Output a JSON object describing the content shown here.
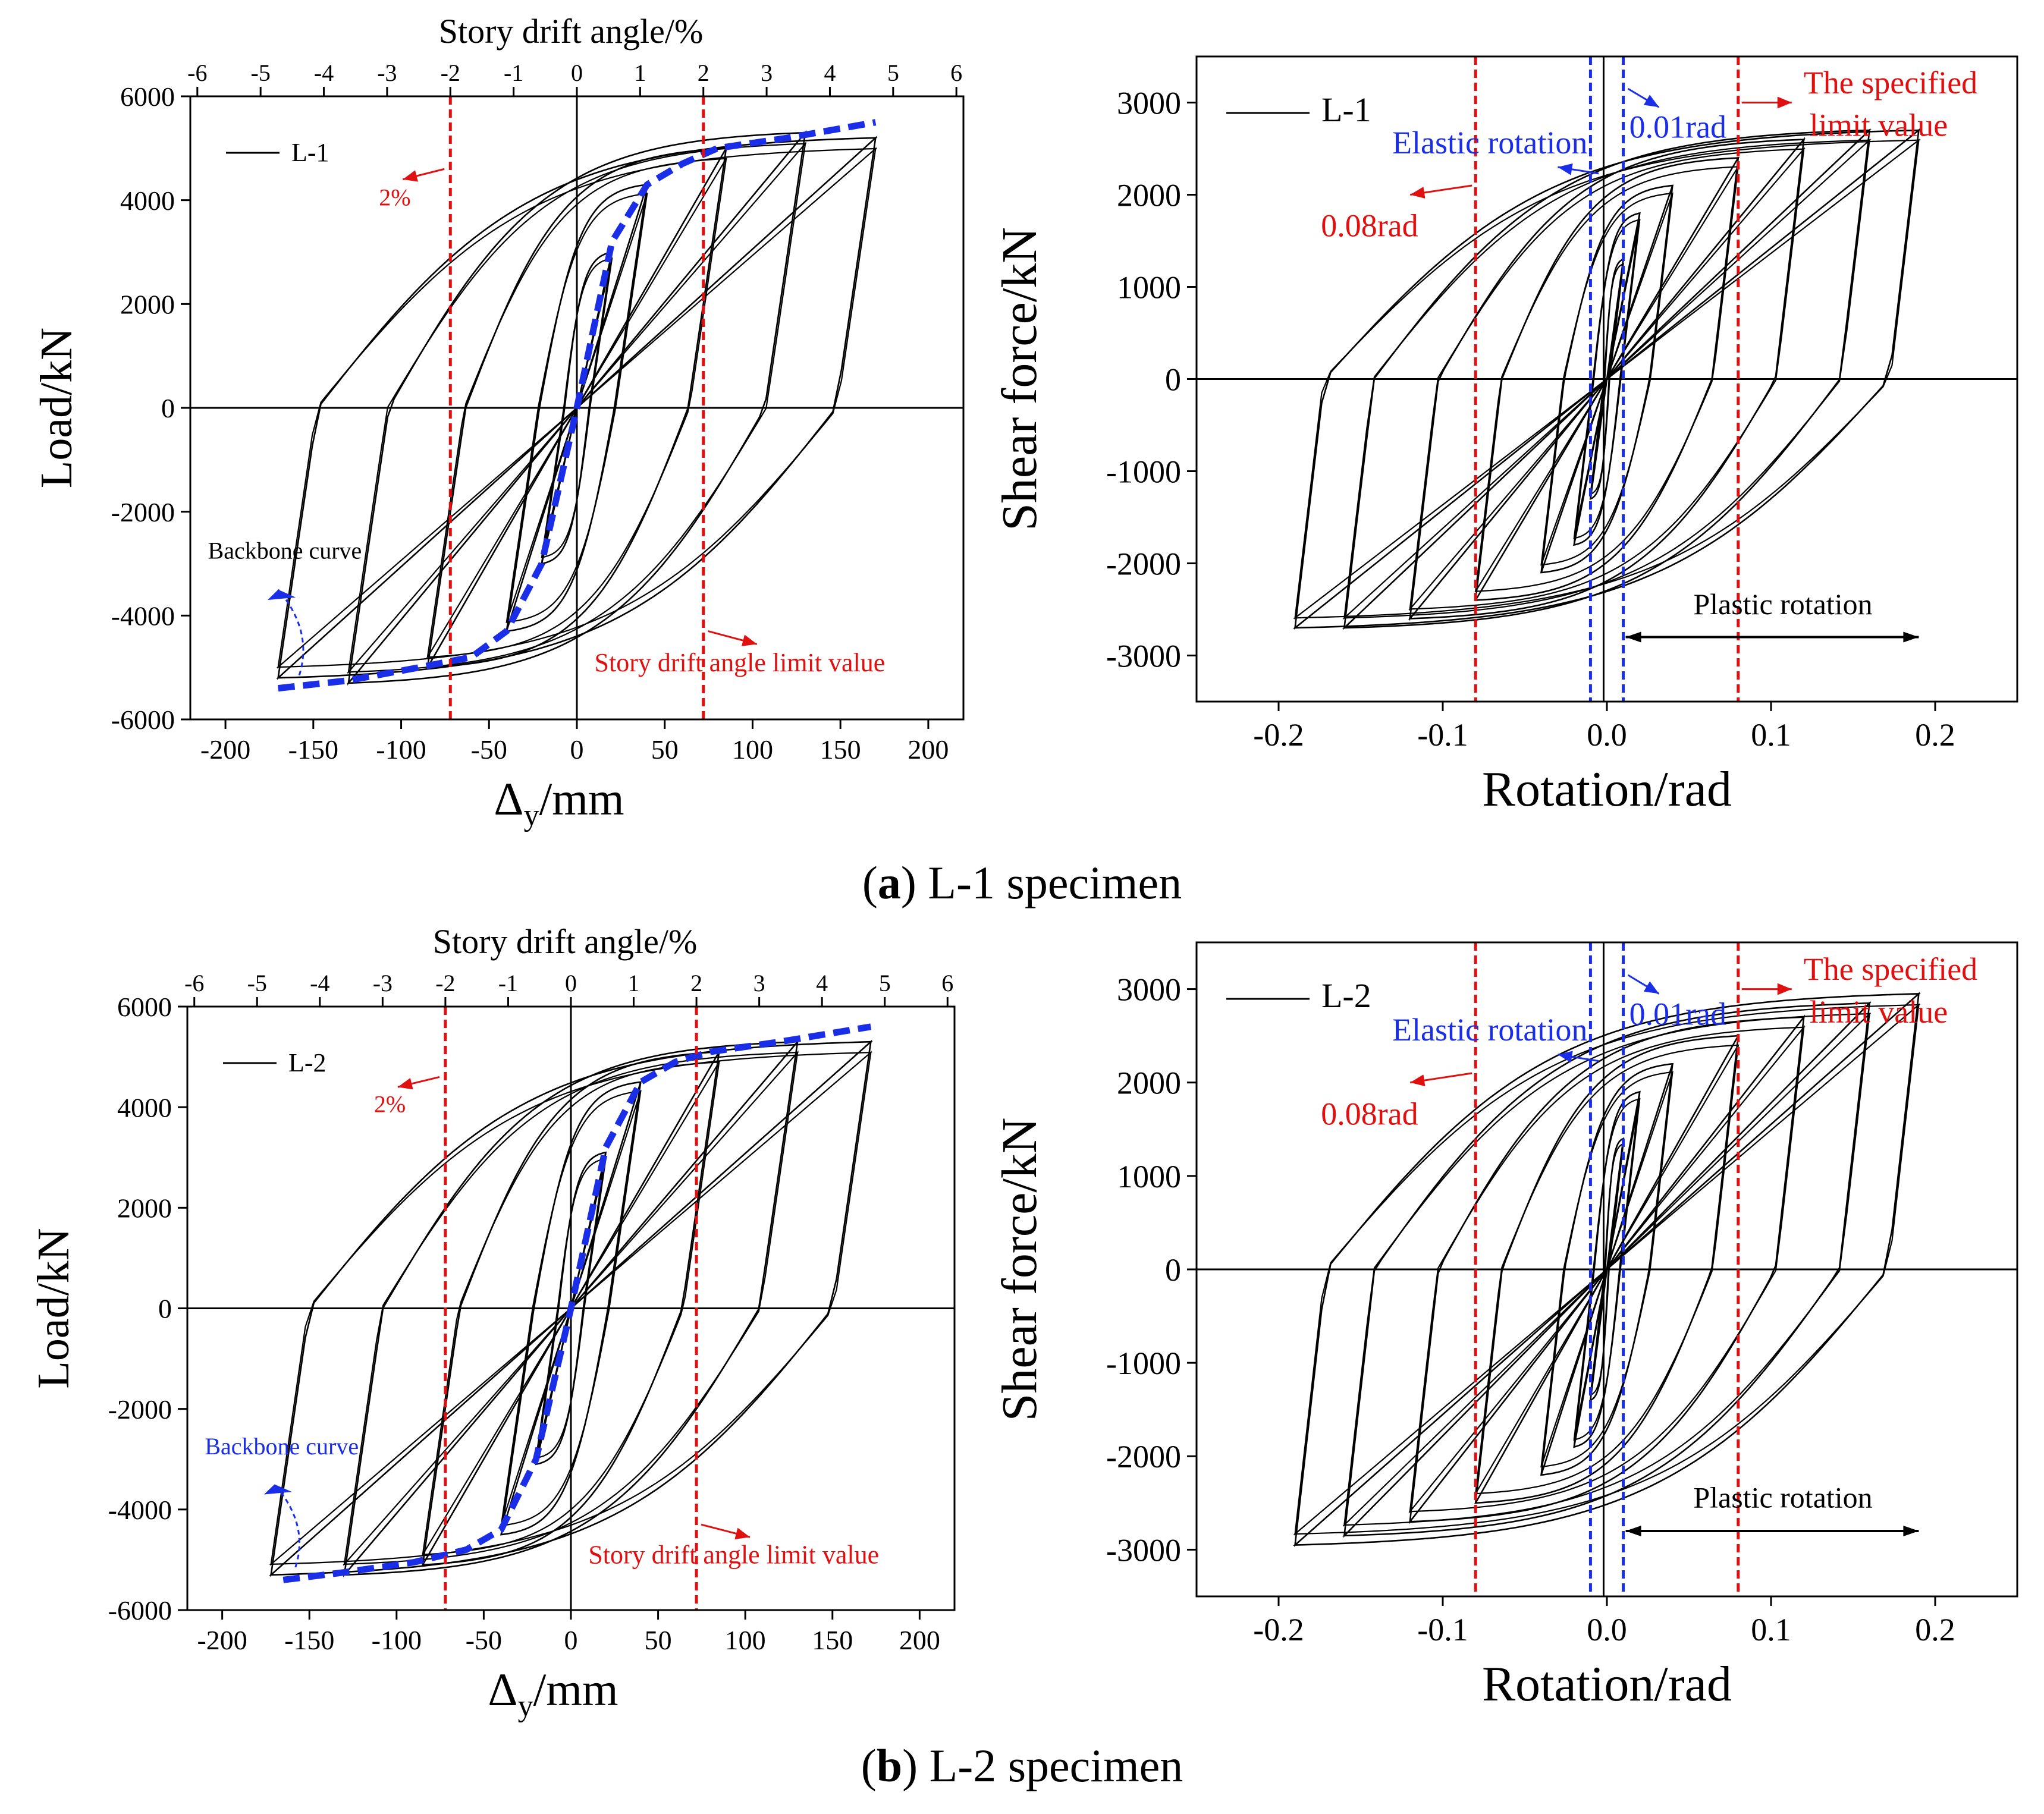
{
  "colors": {
    "curve": "#000000",
    "backbone": "#1a2ee8",
    "limit": "#e01010",
    "elastic": "#1a2ee8",
    "axis": "#000000"
  },
  "captions": [
    {
      "letter": "a",
      "text": "L-1 specimen"
    },
    {
      "letter": "b",
      "text": "L-2 specimen"
    }
  ],
  "chart_data": [
    {
      "id": "a-left",
      "type": "line",
      "title": "",
      "xlabel": "Δy/mm",
      "xlabel_main": "Δ",
      "xlabel_sub": "y",
      "xlabel_unit": "/mm",
      "ylabel": "Load/kN",
      "x2label": "Story drift angle/%",
      "xlim": [
        -220,
        220
      ],
      "ylim": [
        -6000,
        6000
      ],
      "xticks": [
        -200,
        -150,
        -100,
        -50,
        0,
        50,
        100,
        150,
        200
      ],
      "yticks": [
        -6000,
        -4000,
        -2000,
        0,
        2000,
        4000,
        6000
      ],
      "x2ticks": [
        -6,
        -5,
        -4,
        -3,
        -2,
        -1,
        0,
        1,
        2,
        3,
        4,
        5,
        6
      ],
      "x2_per_unit_mm": 36,
      "legend": {
        "label": "L-1",
        "position": "top-left"
      },
      "hysteresis": {
        "amps": [
          20,
          40,
          85,
          130,
          170
        ],
        "forces": [
          3000,
          4300,
          5000,
          5300,
          5200
        ],
        "k0": 230
      },
      "backbone": {
        "x": [
          -170,
          -130,
          -90,
          -60,
          -40,
          -20,
          0,
          20,
          40,
          60,
          80,
          120,
          170
        ],
        "y": [
          -5400,
          -5250,
          -5000,
          -4800,
          -4300,
          -3000,
          0,
          3200,
          4300,
          4700,
          5000,
          5200,
          5500
        ]
      },
      "limit_lines_x": [
        -72,
        72
      ],
      "annotations": {
        "two_pct": "2%",
        "backbone": "Backbone curve",
        "limit": "Story drift angle limit value"
      }
    },
    {
      "id": "a-right",
      "type": "line",
      "title": "",
      "xlabel": "Rotation/rad",
      "ylabel": "Shear force/kN",
      "xlim": [
        -0.25,
        0.25
      ],
      "ylim": [
        -3500,
        3500
      ],
      "xticks": [
        -0.2,
        -0.1,
        0.0,
        0.1,
        0.2
      ],
      "xtick_labels": [
        "-0.2",
        "-0.1",
        "0.0",
        "0.1",
        "0.2"
      ],
      "yticks": [
        -3000,
        -2000,
        -1000,
        0,
        1000,
        2000,
        3000
      ],
      "legend": {
        "label": "L-1",
        "position": "top-left"
      },
      "hysteresis": {
        "amps": [
          0.01,
          0.02,
          0.04,
          0.08,
          0.12,
          0.16,
          0.19
        ],
        "forces": [
          1300,
          1800,
          2100,
          2400,
          2600,
          2700,
          2700
        ],
        "k0": 150000
      },
      "limit_lines_x": [
        -0.08,
        0.08
      ],
      "elastic_lines_x": [
        -0.01,
        0.01
      ],
      "center_line_x": -0.002,
      "annotations": {
        "specified": [
          "The specified",
          "limit value"
        ],
        "elastic": "Elastic rotation",
        "rad01": "0.01rad",
        "rad08": "0.08rad",
        "plastic": "Plastic rotation"
      }
    },
    {
      "id": "b-left",
      "type": "line",
      "title": "",
      "xlabel": "Δy/mm",
      "xlabel_main": "Δ",
      "xlabel_sub": "y",
      "xlabel_unit": "/mm",
      "ylabel": "Load/kN",
      "x2label": "Story drift angle/%",
      "xlim": [
        -220,
        220
      ],
      "ylim": [
        -6000,
        6000
      ],
      "xticks": [
        -200,
        -150,
        -100,
        -50,
        0,
        50,
        100,
        150,
        200
      ],
      "yticks": [
        -6000,
        -4000,
        -2000,
        0,
        2000,
        4000,
        6000
      ],
      "x2ticks": [
        -6,
        -5,
        -4,
        -3,
        -2,
        -1,
        0,
        1,
        2,
        3,
        4,
        5,
        6
      ],
      "x2_per_unit_mm": 36,
      "legend": {
        "label": "L-2",
        "position": "top-left"
      },
      "hysteresis": {
        "amps": [
          20,
          40,
          85,
          130,
          172
        ],
        "forces": [
          3100,
          4500,
          5100,
          5300,
          5300
        ],
        "k0": 240
      },
      "backbone": {
        "x": [
          -165,
          -130,
          -90,
          -60,
          -40,
          -20,
          0,
          20,
          40,
          60,
          80,
          120,
          172
        ],
        "y": [
          -5400,
          -5250,
          -5050,
          -4800,
          -4400,
          -3000,
          0,
          3200,
          4500,
          4900,
          5100,
          5300,
          5600
        ]
      },
      "limit_lines_x": [
        -72,
        72
      ],
      "annotations": {
        "two_pct": "2%",
        "backbone": "Backbone curve",
        "limit": "Story drift angle limit value"
      }
    },
    {
      "id": "b-right",
      "type": "line",
      "title": "",
      "xlabel": "Rotation/rad",
      "ylabel": "Shear force/kN",
      "xlim": [
        -0.25,
        0.25
      ],
      "ylim": [
        -3500,
        3500
      ],
      "xticks": [
        -0.2,
        -0.1,
        0.0,
        0.1,
        0.2
      ],
      "xtick_labels": [
        "-0.2",
        "-0.1",
        "0.0",
        "0.1",
        "0.2"
      ],
      "yticks": [
        -3000,
        -2000,
        -1000,
        0,
        1000,
        2000,
        3000
      ],
      "legend": {
        "label": "L-2",
        "position": "top-left"
      },
      "hysteresis": {
        "amps": [
          0.01,
          0.02,
          0.04,
          0.08,
          0.12,
          0.16,
          0.19
        ],
        "forces": [
          1400,
          1900,
          2200,
          2500,
          2700,
          2850,
          2950
        ],
        "k0": 155000
      },
      "limit_lines_x": [
        -0.08,
        0.08
      ],
      "elastic_lines_x": [
        -0.01,
        0.01
      ],
      "center_line_x": -0.002,
      "annotations": {
        "specified": [
          "The specified",
          "limit value"
        ],
        "elastic": "Elastic rotation",
        "rad01": "0.01rad",
        "rad08": "0.08rad",
        "plastic": "Plastic rotation"
      }
    }
  ]
}
